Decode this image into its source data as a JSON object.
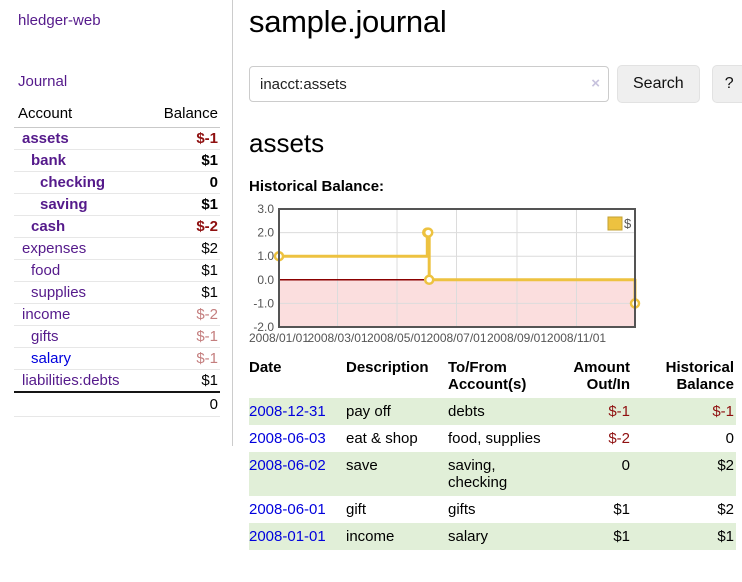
{
  "app": {
    "brand": "hledger-web",
    "nav_journal": "Journal"
  },
  "sidebar": {
    "accounts_table": {
      "headers": {
        "account": "Account",
        "balance": "Balance"
      },
      "rows": [
        {
          "name": "assets",
          "balance": "$-1",
          "classes": {
            "name": "d1 bold",
            "balance": "bold neg"
          }
        },
        {
          "name": "bank",
          "balance": "$1",
          "classes": {
            "name": "d2 bold",
            "balance": "bold"
          }
        },
        {
          "name": "checking",
          "balance": "0",
          "classes": {
            "name": "d3 bold",
            "balance": "bold"
          }
        },
        {
          "name": "saving",
          "balance": "$1",
          "classes": {
            "name": "d3 bold",
            "balance": "bold"
          }
        },
        {
          "name": "cash",
          "balance": "$-2",
          "classes": {
            "name": "d2 bold",
            "balance": "bold neg"
          }
        },
        {
          "name": "expenses",
          "balance": "$2",
          "classes": {
            "name": "d1",
            "balance": ""
          }
        },
        {
          "name": "food",
          "balance": "$1",
          "classes": {
            "name": "d2",
            "balance": ""
          }
        },
        {
          "name": "supplies",
          "balance": "$1",
          "classes": {
            "name": "d2",
            "balance": ""
          }
        },
        {
          "name": "income",
          "balance": "$-2",
          "classes": {
            "name": "d1",
            "balance": "muted-neg"
          }
        },
        {
          "name": "gifts",
          "balance": "$-1",
          "classes": {
            "name": "d2",
            "balance": "muted-neg"
          }
        },
        {
          "name": "salary",
          "balance": "$-1",
          "classes": {
            "name": "d2 blue",
            "balance": "muted-neg"
          }
        },
        {
          "name": "liabilities:debts",
          "balance": "$1",
          "classes": {
            "name": "d1",
            "balance": ""
          }
        }
      ],
      "total": "0"
    }
  },
  "header": {
    "title": "sample.journal"
  },
  "search": {
    "value": "inacct:assets",
    "clear_icon": "×",
    "button": "Search",
    "help_button": "?"
  },
  "account_page": {
    "title": "assets",
    "chart_label": "Historical Balance:"
  },
  "chart_data": {
    "type": "line",
    "line_style": "step-after",
    "legend": [
      {
        "label": "$",
        "color": "#edc240"
      }
    ],
    "legend_position": "top-right",
    "x_range": [
      "2008-01-01",
      "2008-12-31"
    ],
    "ylim": [
      -2,
      3
    ],
    "y_ticks": [
      "3.0",
      "2.0",
      "1.0",
      "0.0",
      "-1.0",
      "-2.0"
    ],
    "x_ticks": [
      "2008/01/01",
      "2008/03/01",
      "2008/05/01",
      "2008/07/01",
      "2008/09/01",
      "2008/11/01"
    ],
    "x_tick_dates": [
      "2008-01-01",
      "2008-03-01",
      "2008-05-01",
      "2008-07-01",
      "2008-09-01",
      "2008-11-01"
    ],
    "series": [
      {
        "name": "$",
        "points": [
          {
            "date": "2008-01-01",
            "value": 1
          },
          {
            "date": "2008-06-01",
            "value": 2
          },
          {
            "date": "2008-06-02",
            "value": 2
          },
          {
            "date": "2008-06-03",
            "value": 0
          },
          {
            "date": "2008-12-31",
            "value": -1
          }
        ]
      }
    ],
    "negative_region_shaded": true,
    "colors": {
      "series": "#edc240",
      "series_border": "#c3a133",
      "zero_line": "#8b0000",
      "negative_fill": "#fbdede",
      "grid": "#dcdcdc",
      "border": "#545454",
      "tick_text": "#545454"
    }
  },
  "register": {
    "headers": {
      "date": "Date",
      "sort_icon": "∧",
      "description": "Description",
      "accounts": "To/From Account(s)",
      "amount": "Amount Out/In",
      "balance": "Historical Balance"
    },
    "rows": [
      {
        "date": "2008-12-31",
        "description": "pay off",
        "accounts": "debts",
        "amount": "$-1",
        "balance": "$-1",
        "classes": {
          "row": "shaded",
          "amount": "neg",
          "balance": "neg"
        }
      },
      {
        "date": "2008-06-03",
        "description": "eat & shop",
        "accounts": "food, supplies",
        "amount": "$-2",
        "balance": "0",
        "classes": {
          "row": "",
          "amount": "neg",
          "balance": ""
        }
      },
      {
        "date": "2008-06-02",
        "description": "save",
        "accounts": "saving, checking",
        "amount": "0",
        "balance": "$2",
        "classes": {
          "row": "shaded",
          "amount": "",
          "balance": ""
        }
      },
      {
        "date": "2008-06-01",
        "description": "gift",
        "accounts": "gifts",
        "amount": "$1",
        "balance": "$2",
        "classes": {
          "row": "",
          "amount": "",
          "balance": ""
        }
      },
      {
        "date": "2008-01-01",
        "description": "income",
        "accounts": "salary",
        "amount": "$1",
        "balance": "$1",
        "classes": {
          "row": "shaded",
          "amount": "",
          "balance": ""
        }
      }
    ]
  },
  "colors": {
    "link_purple": "#551a8b",
    "link_blue": "#0000dd",
    "negative_red": "#8f1010",
    "muted_negative": "#c47e7e",
    "stripe_green": "#e1efd8"
  }
}
